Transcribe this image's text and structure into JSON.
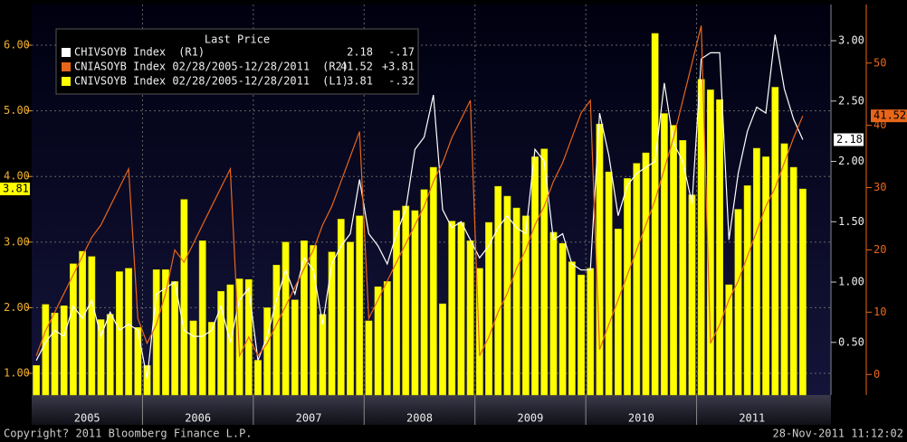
{
  "chart_data": {
    "type": "bar_line",
    "legend_title": "Last Price",
    "categories": [
      null,
      null,
      null,
      null,
      null,
      null,
      null,
      null,
      null,
      null,
      null,
      null,
      null,
      null,
      null,
      null,
      null,
      null,
      null,
      null,
      null,
      null,
      null,
      null,
      null,
      null,
      null,
      null,
      null,
      null,
      null,
      null,
      null,
      null,
      null,
      null,
      null,
      null,
      null,
      null,
      null,
      null,
      null,
      null,
      null,
      null,
      null,
      null,
      null,
      null,
      null,
      null,
      null,
      null,
      null,
      null,
      null,
      null,
      null,
      null,
      null,
      null,
      null,
      null,
      null,
      null,
      null,
      null,
      null,
      null,
      null,
      null,
      null,
      null,
      null,
      null,
      null,
      null,
      null,
      null,
      null,
      null,
      null,
      null
    ],
    "x_labels": [
      "2005",
      "2006",
      "2007",
      "2008",
      "2009",
      "2010",
      "2011"
    ],
    "ylim": [
      0.67,
      6.62
    ],
    "yticks": [
      {
        "value": 1,
        "label": "1.00"
      },
      {
        "value": 2,
        "label": "2.00"
      },
      {
        "value": 3,
        "label": "3.00"
      },
      {
        "value": 4,
        "label": "4.00"
      },
      {
        "value": 5,
        "label": "5.00"
      },
      {
        "value": 6,
        "label": "6.00"
      }
    ],
    "y2lim": [
      0.064,
      3.3
    ],
    "y2ticks": [
      {
        "value": 0.5,
        "label": "0.50"
      },
      {
        "value": 1,
        "label": "1.00"
      },
      {
        "value": 1.5,
        "label": "1.50"
      },
      {
        "value": 2,
        "label": "2.00"
      },
      {
        "value": 2.5,
        "label": "2.50"
      },
      {
        "value": 3,
        "label": "3.00"
      }
    ],
    "y3lim": [
      -3.3,
      59.4
    ],
    "y3ticks": [
      0,
      10,
      20,
      30,
      40,
      50
    ],
    "grid": true,
    "series": [
      {
        "name": "CHIVSOYB Index",
        "tag": "(R1)",
        "change": "-.17",
        "type": "line",
        "axis": "y2",
        "color": "#ffffff",
        "values": [
          0.35,
          0.5,
          0.6,
          0.55,
          0.8,
          0.7,
          0.85,
          0.55,
          0.75,
          0.6,
          0.65,
          0.6,
          0.2,
          0.9,
          0.95,
          1.0,
          0.6,
          0.55,
          0.55,
          0.6,
          0.8,
          0.5,
          0.85,
          0.95,
          0.35,
          0.55,
          0.85,
          1.1,
          0.9,
          1.2,
          1.1,
          0.65,
          1.15,
          1.3,
          1.4,
          1.85,
          1.4,
          1.3,
          1.15,
          1.4,
          1.6,
          2.1,
          2.2,
          2.55,
          1.6,
          1.45,
          1.5,
          1.35,
          1.2,
          1.3,
          1.45,
          1.55,
          1.45,
          1.4,
          2.1,
          2.0,
          1.35,
          1.4,
          1.15,
          1.1,
          1.1,
          2.4,
          2.05,
          1.55,
          1.8,
          1.9,
          1.95,
          2.0,
          2.65,
          2.15,
          2.0,
          1.65,
          2.85,
          2.9,
          2.9,
          1.35,
          1.9,
          2.25,
          2.45,
          2.4,
          3.05,
          2.6,
          2.35,
          2.18
        ]
      },
      {
        "name": "CNIASOYB Index 02/28/2005-12/28/2011",
        "tag": "(R2)",
        "change": "+3.81",
        "type": "line",
        "axis": "y3",
        "color": "#e8661a",
        "values": [
          3,
          7,
          10,
          13,
          16,
          19,
          22,
          24,
          27,
          30,
          33,
          9,
          5,
          8,
          13,
          20,
          18,
          21,
          24,
          27,
          30,
          33,
          3,
          6,
          3,
          5,
          8,
          11,
          14,
          17,
          20,
          24,
          27,
          31,
          35,
          39,
          9,
          12,
          15,
          18,
          21,
          24,
          27,
          31,
          34,
          38,
          41,
          44,
          3,
          6,
          10,
          13,
          17,
          20,
          24,
          27,
          31,
          34,
          38,
          42,
          44,
          4,
          8,
          12,
          16,
          20,
          24,
          28,
          33,
          38,
          44,
          50,
          56,
          5,
          8,
          12,
          15,
          19,
          23,
          27,
          30,
          34,
          38,
          41.52
        ]
      },
      {
        "name": "CNIVSOYB Index 02/28/2005-12/28/2011",
        "tag": "(L1)",
        "change": "-.32",
        "type": "bar",
        "axis": "y",
        "color": "#ffff00",
        "values": [
          1.12,
          2.05,
          1.92,
          2.03,
          2.67,
          2.86,
          2.78,
          1.82,
          1.9,
          2.55,
          2.6,
          1.7,
          1.12,
          2.58,
          2.58,
          2.4,
          3.65,
          1.8,
          3.02,
          1.78,
          2.25,
          2.35,
          2.44,
          2.43,
          1.2,
          2.0,
          2.65,
          3.0,
          2.12,
          3.02,
          2.95,
          1.9,
          2.85,
          3.35,
          3.0,
          3.4,
          1.8,
          2.32,
          2.4,
          3.48,
          3.55,
          3.48,
          3.8,
          4.14,
          2.06,
          3.32,
          3.3,
          3.02,
          2.6,
          3.3,
          3.85,
          3.7,
          3.52,
          3.4,
          4.3,
          4.42,
          3.15,
          2.98,
          2.7,
          2.5,
          2.6,
          4.8,
          4.07,
          3.2,
          3.97,
          4.2,
          4.36,
          6.18,
          4.96,
          4.78,
          4.55,
          3.72,
          5.48,
          5.32,
          5.17,
          2.35,
          3.5,
          3.86,
          4.43,
          4.3,
          5.36,
          4.5,
          4.14,
          3.81
        ]
      }
    ]
  },
  "footer": {
    "copyright": "Copyright? 2011 Bloomberg Finance L.P.",
    "timestamp": "28-Nov-2011 11:12:02"
  }
}
